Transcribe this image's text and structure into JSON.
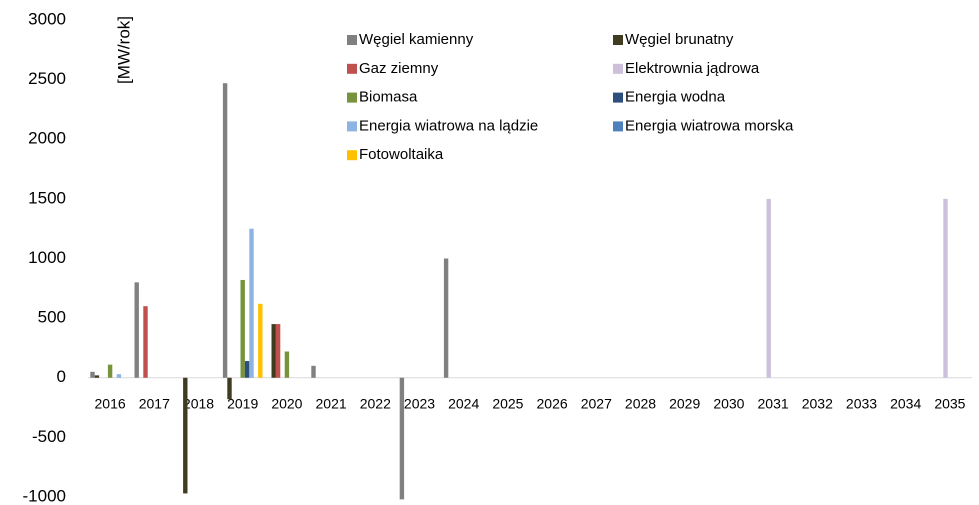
{
  "chart_data": {
    "type": "bar",
    "y_label": "[MW/rok]",
    "categories": [
      "2016",
      "2017",
      "2018",
      "2019",
      "2020",
      "2021",
      "2022",
      "2023",
      "2024",
      "2025",
      "2026",
      "2027",
      "2028",
      "2029",
      "2030",
      "2031",
      "2032",
      "2033",
      "2034",
      "2035"
    ],
    "series": [
      {
        "name": "Węgiel kamienny",
        "color": "#808080",
        "values": [
          50,
          800,
          0,
          2470,
          0,
          100,
          0,
          -1020,
          1000,
          0,
          0,
          0,
          0,
          0,
          0,
          0,
          0,
          0,
          0,
          0
        ]
      },
      {
        "name": "Węgiel brunatny",
        "color": "#3f3c22",
        "values": [
          20,
          0,
          -970,
          -180,
          450,
          0,
          0,
          0,
          0,
          0,
          0,
          0,
          0,
          0,
          0,
          0,
          0,
          0,
          0,
          0
        ]
      },
      {
        "name": "Gaz ziemny",
        "color": "#c0504d",
        "values": [
          0,
          600,
          0,
          0,
          450,
          0,
          0,
          0,
          0,
          0,
          0,
          0,
          0,
          0,
          0,
          0,
          0,
          0,
          0,
          0
        ]
      },
      {
        "name": "Elektrownia jądrowa",
        "color": "#ccc0da",
        "values": [
          0,
          0,
          0,
          0,
          0,
          0,
          0,
          0,
          0,
          0,
          0,
          0,
          0,
          0,
          0,
          1500,
          0,
          0,
          0,
          1500
        ]
      },
      {
        "name": "Biomasa",
        "color": "#77933c",
        "values": [
          110,
          0,
          0,
          820,
          220,
          0,
          0,
          0,
          0,
          0,
          0,
          0,
          0,
          0,
          0,
          0,
          0,
          0,
          0,
          0
        ]
      },
      {
        "name": "Energia wodna",
        "color": "#2c4f7c",
        "values": [
          0,
          0,
          0,
          140,
          0,
          0,
          0,
          0,
          0,
          0,
          0,
          0,
          0,
          0,
          0,
          0,
          0,
          0,
          0,
          0
        ]
      },
      {
        "name": "Energia wiatrowa na lądzie",
        "color": "#8db4e2",
        "values": [
          30,
          0,
          0,
          1250,
          0,
          0,
          0,
          0,
          0,
          0,
          0,
          0,
          0,
          0,
          0,
          0,
          0,
          0,
          0,
          0
        ]
      },
      {
        "name": "Energia wiatrowa morska",
        "color": "#4f81bd",
        "values": [
          0,
          0,
          0,
          0,
          0,
          0,
          0,
          0,
          0,
          0,
          0,
          0,
          0,
          0,
          0,
          0,
          0,
          0,
          0,
          0
        ]
      },
      {
        "name": "Fotowoltaika",
        "color": "#ffc000",
        "values": [
          0,
          0,
          0,
          620,
          0,
          0,
          0,
          0,
          0,
          0,
          0,
          0,
          0,
          0,
          0,
          0,
          0,
          0,
          0,
          0
        ]
      }
    ],
    "ylim": [
      -1000,
      3000
    ],
    "yticks": [
      -1000,
      -500,
      0,
      500,
      1000,
      1500,
      2000,
      2500,
      3000
    ],
    "grid": false,
    "legend": "top"
  }
}
